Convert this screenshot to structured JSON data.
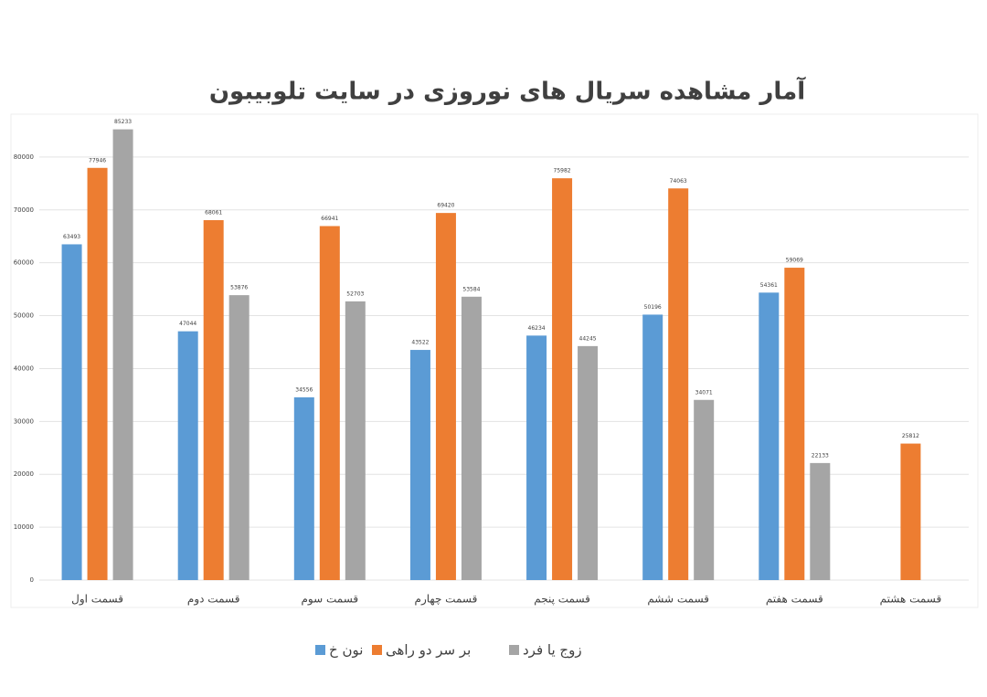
{
  "chart_data": {
    "type": "bar",
    "title": "آمار مشاهده سریال های نوروزی در سایت تلوبیبون",
    "categories": [
      "قسمت اول",
      "قسمت دوم",
      "قسمت سوم",
      "قسمت چهارم",
      "قسمت پنجم",
      "قسمت ششم",
      "قسمت هفتم",
      "قسمت هشتم"
    ],
    "series": [
      {
        "name": "نون خ",
        "color": "#5b9bd5",
        "values": [
          63493,
          47044,
          34556,
          43522,
          46234,
          50196,
          54361,
          null
        ]
      },
      {
        "name": "بر سر دو راهی",
        "color": "#ed7d31",
        "values": [
          77946,
          68061,
          66941,
          69420,
          75982,
          74063,
          59069,
          25812
        ]
      },
      {
        "name": "زوج یا فرد",
        "color": "#a5a5a5",
        "values": [
          85233,
          53876,
          52703,
          53584,
          44245,
          34071,
          22133,
          null
        ]
      }
    ],
    "ylim": [
      0,
      90000
    ],
    "yticks": [
      0,
      10000,
      20000,
      30000,
      40000,
      50000,
      60000,
      70000,
      80000
    ],
    "grid": true
  }
}
